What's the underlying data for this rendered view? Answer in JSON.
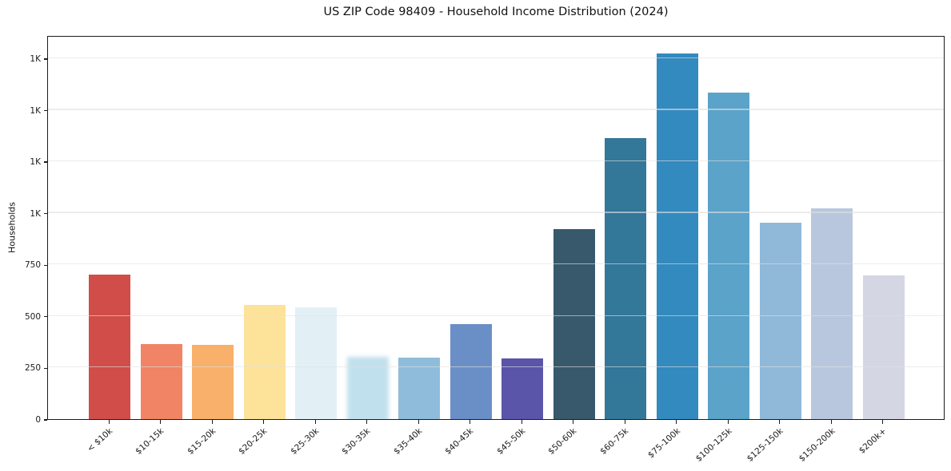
{
  "title": "US ZIP Code 98409 - Household Income Distribution (2024)",
  "chart_data": {
    "type": "bar",
    "title": "US ZIP Code 98409 - Household Income Distribution (2024)",
    "xlabel": "",
    "ylabel": "Households",
    "categories": [
      "< $10k",
      "$10-15k",
      "$15-20k",
      "$20-25k",
      "$25-30k",
      "$30-35k",
      "$35-40k",
      "$40-45k",
      "$45-50k",
      "$50-60k",
      "$60-75k",
      "$75-100k",
      "$100-125k",
      "$125-150k",
      "$150-200k",
      "$200k+"
    ],
    "values": [
      702,
      365,
      360,
      552,
      542,
      301,
      298,
      461,
      295,
      920,
      1361,
      1772,
      1582,
      951,
      1023,
      698
    ],
    "bar_colors": [
      "#d14d49",
      "#f08465",
      "#f8b06a",
      "#fde29a",
      "#e2f0f6",
      "#c1e0ee",
      "#8fbcdb",
      "#6a8fc6",
      "#5a55a8",
      "#37596b",
      "#337799",
      "#338abe",
      "#5ba3c9",
      "#8fb8d9",
      "#b9c7de",
      "#d5d6e4"
    ],
    "blurred_bar_index": 5,
    "ylim": [
      0,
      1862
    ],
    "yticks": [
      {
        "value": 0,
        "label": "0"
      },
      {
        "value": 250,
        "label": "250"
      },
      {
        "value": 500,
        "label": "500"
      },
      {
        "value": 750,
        "label": "750"
      },
      {
        "value": 1000,
        "label": "1K"
      },
      {
        "value": 1250,
        "label": "1K"
      },
      {
        "value": 1500,
        "label": "1K"
      },
      {
        "value": 1750,
        "label": "1K"
      }
    ],
    "grid": "horizontal, light gray, drawn above bars",
    "legend_position": "none",
    "x_tick_rotation_deg": -42
  },
  "colors": {
    "background": "#ffffff",
    "spine": "#1b1b1b",
    "gridline": "#e1e1e1",
    "text": "#111111"
  }
}
